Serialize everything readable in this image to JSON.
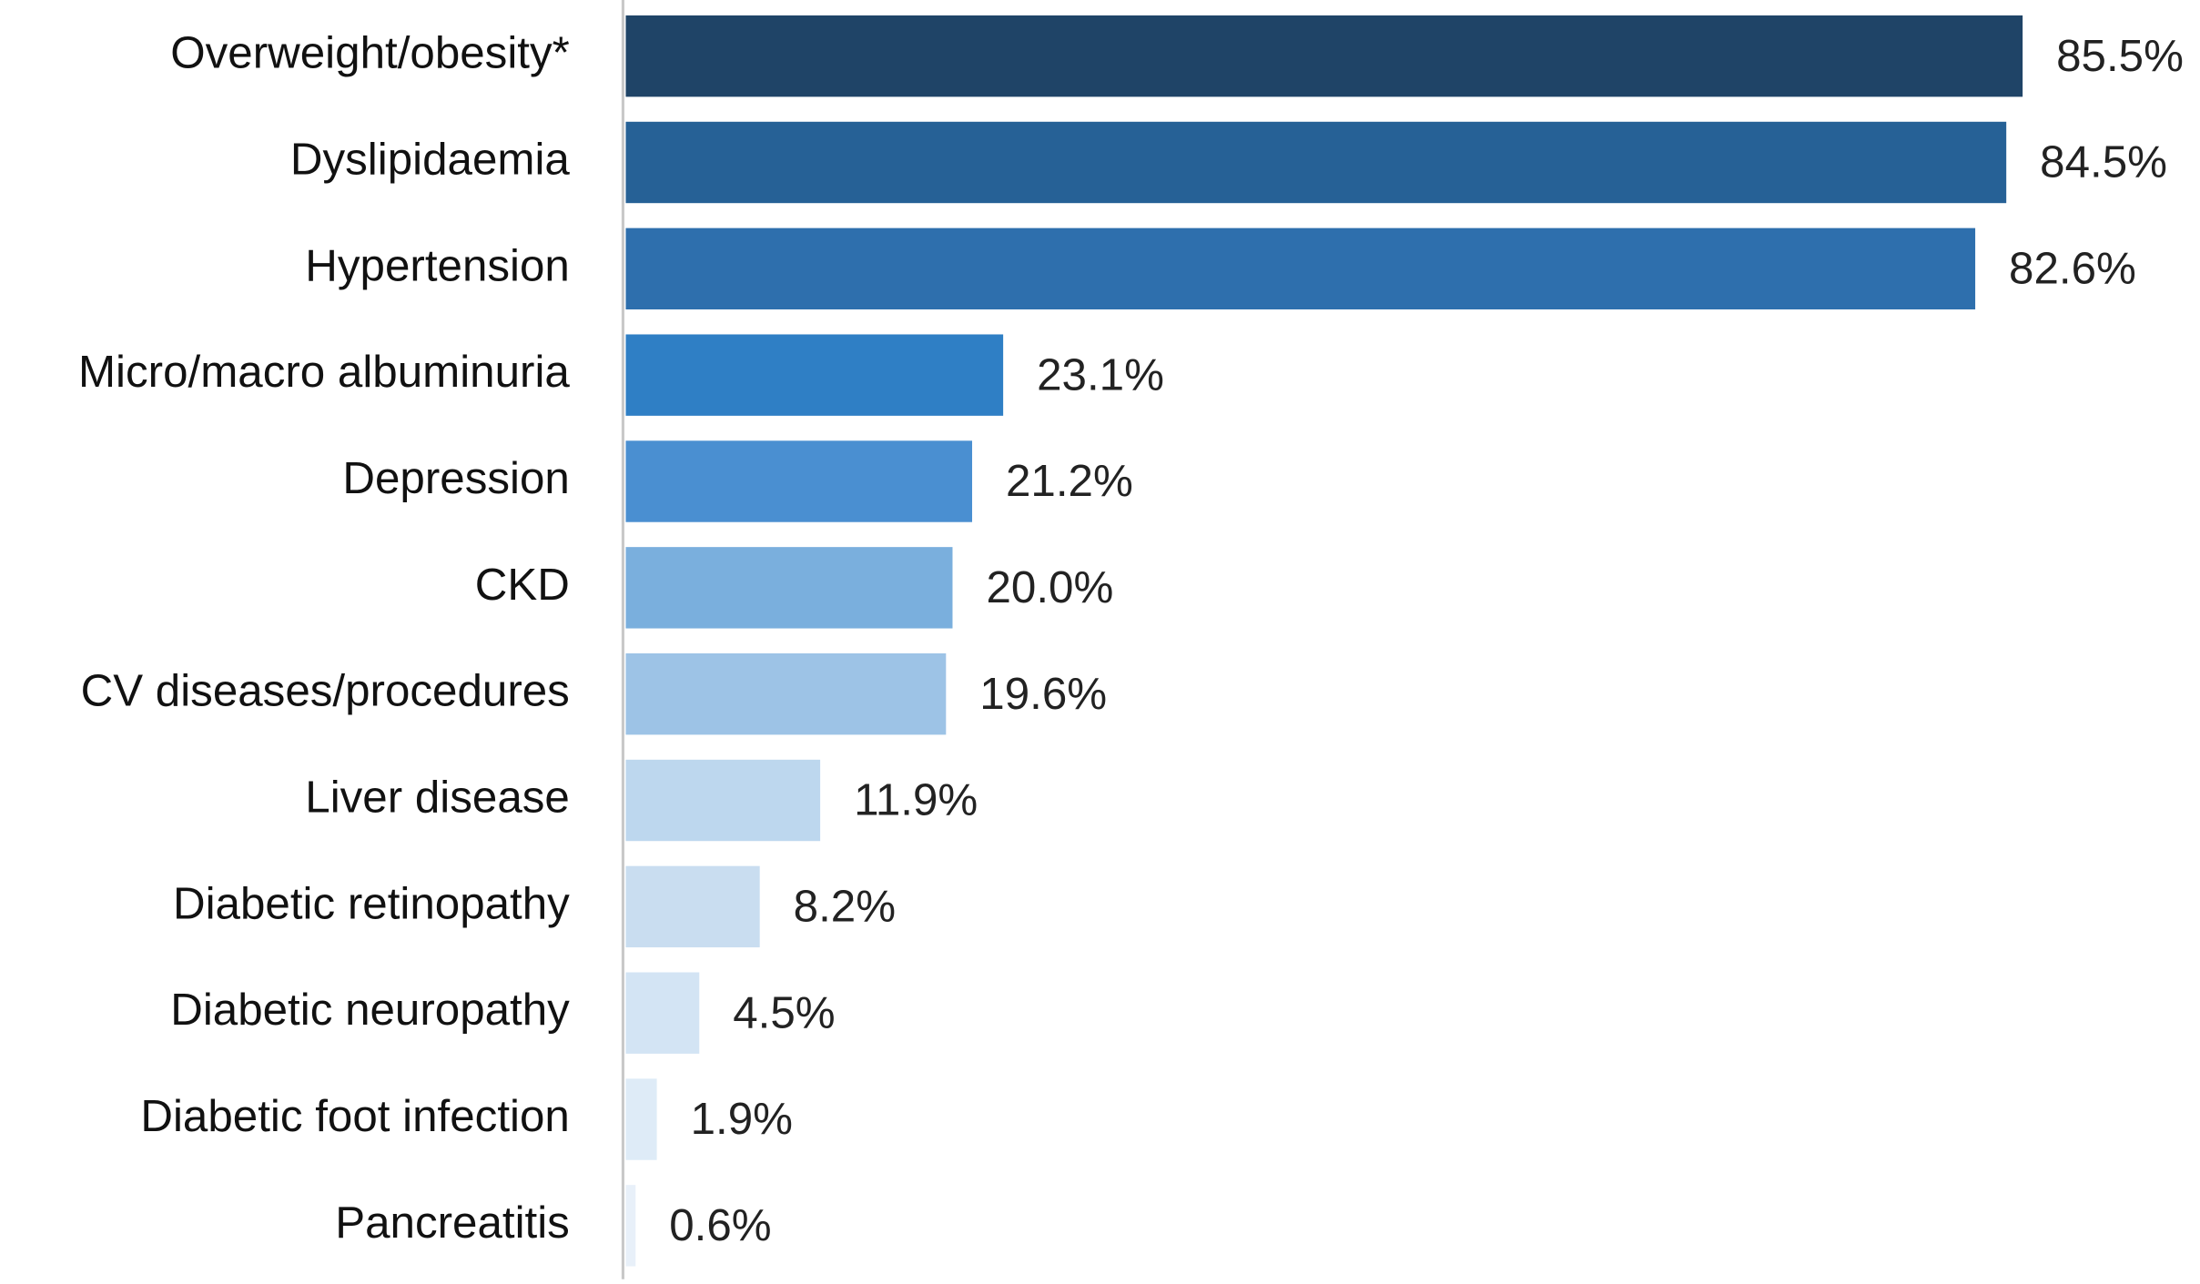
{
  "chart_data": {
    "type": "hbar",
    "categories": [
      "Overweight/obesity*",
      "Dyslipidaemia",
      "Hypertension",
      "Micro/macro albuminuria",
      "Depression",
      "CKD",
      "CV diseases/procedures",
      "Liver disease",
      "Diabetic retinopathy",
      "Diabetic neuropathy",
      "Diabetic foot infection",
      "Pancreatitis"
    ],
    "values": [
      85.5,
      84.5,
      82.6,
      23.1,
      21.2,
      20.0,
      19.6,
      11.9,
      8.2,
      4.5,
      1.9,
      0.6
    ],
    "value_labels": [
      "85.5%",
      "84.5%",
      "82.6%",
      "23.1%",
      "21.2%",
      "20.0%",
      "19.6%",
      "11.9%",
      "8.2%",
      "4.5%",
      "1.9%",
      "0.6%"
    ],
    "colors": [
      "#1f4467",
      "#266196",
      "#2e6fad",
      "#2f7fc5",
      "#4a8fd1",
      "#7aafdd",
      "#9dc3e6",
      "#bdd7ee",
      "#c9ddf0",
      "#d3e4f4",
      "#deebf7",
      "#e8f0f9"
    ],
    "xlim": [
      0,
      90
    ]
  }
}
